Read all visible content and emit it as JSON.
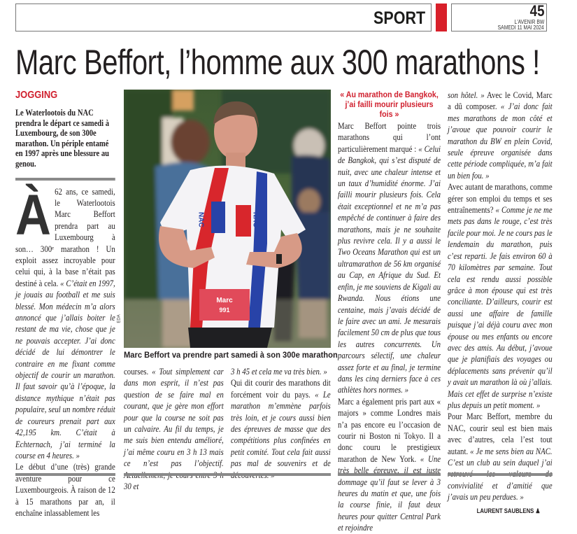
{
  "header": {
    "section": "SPORT",
    "page_number": "45",
    "paper": "L'AVENIR BW",
    "date": "SAMEDI 11 MAI 2024",
    "accent_color": "#d8202a"
  },
  "article": {
    "title": "Marc Beffort, l’homme aux 300 marathons !",
    "kicker": "JOGGING",
    "lead": "Le Waterlootois du NAC prendra le départ ce samedi à Luxembourg, de son 300e marathon. Un périple entamé en 1997 après une blessure au genou.",
    "drop_cap": "À",
    "photo": {
      "caption": "Marc Beffort va prendre part samedi à son 300e marathon",
      "credit": "EDA",
      "bib_name": "Marc",
      "bib_number": "991",
      "club": "NAC"
    },
    "intertitle": "« Au marathon de Bangkok, j’ai failli mourir plusieurs fois »",
    "byline": "LAURENT SAUBLENS",
    "columns": [
      [
        [
          {
            "t": "62 ans, ce samedi, le Waterlootois Marc Beffort prendra part au Luxembourg à son… 300ᵉ marathon ! Un exploit assez incroyable pour celui qui, à la base n’était pas destiné à cela. "
          },
          {
            "t": "« C’était en 1997, je jouais au football et me suis blessé. Mon médecin m’a alors annoncé que j’allais boiter le restant de ma vie, chose que je ne pouvais accepter. J’ai donc décidé de lui démontrer le contraire en me fixant comme objectif de courir un marathon. Il faut savoir qu’à l’époque, la distance mythique n’était pas populaire, seul un nombre réduit de coureurs prenait part aux 42,195 km. C’était à Echternach, j’ai terminé la course en 4 heures. »",
            "i": true
          }
        ],
        [
          {
            "t": "Le début d’une (très) grande aventure pour ce Luxembourgeois. À raison de 12 à 15 marathons par an, il enchaîne inlassablement les"
          }
        ]
      ],
      [
        [
          {
            "t": "courses. "
          },
          {
            "t": "« Tout simplement car dans mon esprit, il n’est pas question de se faire mal en courant, que je gère mon effort pour que la course ne soit pas un calvaire. Au fil du temps, je me suis bien entendu amélioré, j’ai même couru en 3 h 13 mais ce n’est pas l’objectif. Actuellement, je cours entre 3 h 30 et",
            "i": true
          }
        ]
      ],
      [
        [
          {
            "t": "3 h 45 et cela me va très bien. »",
            "i": true
          }
        ],
        [
          {
            "t": "Qui dit courir des marathons dit forcément voir du pays. "
          },
          {
            "t": "« Le marathon m’emmène parfois très loin, et je cours aussi bien des épreuves de masse que des compétitions plus confinées en petit comité. Tout cela fait aussi pas mal de souvenirs et de découvertes. »",
            "i": true
          }
        ]
      ],
      [
        [
          {
            "t": "Marc Beffort pointe trois marathons qui l’ont particulièrement marqué : "
          },
          {
            "t": "« Celui de Bangkok, qui s’est disputé de nuit, avec une chaleur intense et un taux d’humidité énorme. J’ai failli mourir plusieurs fois. Cela était exceptionnel et ne m’a pas empêché de continuer à faire des marathons, mais je ne souhaite plus revivre cela. Il y a aussi le Two Oceans Marathon qui est un ultramarathon de 56 km organisé au Cap, en Afrique du Sud. Et enfin, je me souviens de Kigali au Rwanda. Nous étions une centaine, mais j’avais décidé de le faire avec un ami. Je mesurais facilement 50 cm de plus que tous les autres concurrents. Un parcours sélectif, une chaleur assez forte et au final, je termine dans les cinq derniers face à ces athlètes hors normes. »",
            "i": true
          }
        ],
        [
          {
            "t": "Marc a également pris part aux « majors » comme Londres mais n’a pas encore eu l’occasion de courir ni Boston ni Tokyo. Il a donc couru le prestigieux marathon de New York. "
          },
          {
            "t": "« Une très belle épreuve, il est juste dommage qu’il faut se lever à 3 heures du matin et que, une fois la course finie, il faut deux heures pour quitter Central Park et rejoindre",
            "i": true
          }
        ]
      ],
      [
        [
          {
            "t": "son hôtel. »",
            "i": true
          },
          {
            "t": " Avec le Covid, Marc a dû composer. "
          },
          {
            "t": "« J’ai donc fait mes marathons de mon côté et j’avoue que pouvoir courir le marathon du BW en plein Covid, seule épreuve organisée dans cette période compliquée, m’a fait un bien fou. »",
            "i": true
          }
        ],
        [
          {
            "t": "Avec autant de marathons, comme gérer son emploi du temps et ses entraînements? "
          },
          {
            "t": "« Comme je ne me mets pas dans le rouge, c’est très facile pour moi. Je ne cours pas le lendemain du marathon, puis c’est reparti. Je fais environ 60 à 70 kilomètres par semaine. Tout cela est rendu aussi possible grâce à mon épouse qui est très conciliante. D’ailleurs, courir est aussi une affaire de famille puisque j’ai déjà couru avec mon épouse ou mes enfants ou encore avec des amis. Au début, j’avoue que je planifiais des voyages ou déplacements sans prévenir qu’il y avait un marathon là où j’allais. Mais cet effet de surprise n’existe plus depuis un petit moment. »",
            "i": true
          }
        ],
        [
          {
            "t": "Pour Marc Beffort, membre du NAC, courir seul est bien mais avec d’autres, cela l’est tout autant. "
          },
          {
            "t": "« Je me sens bien au NAC. C’est un club au sein duquel j’ai retrouvé les valeurs de convivialité et d’amitié que j’avais un peu perdues. »",
            "i": true
          }
        ]
      ]
    ]
  }
}
